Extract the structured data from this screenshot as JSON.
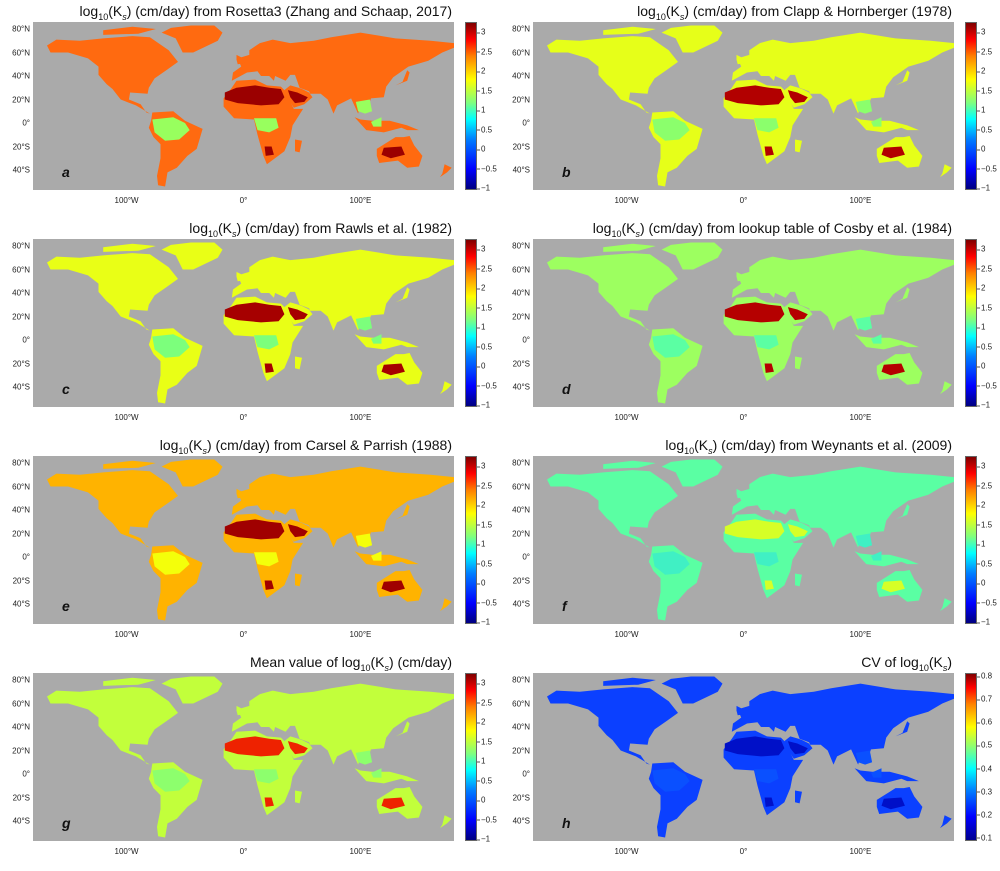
{
  "figure": {
    "lat_labels": [
      "80°N",
      "60°N",
      "40°N",
      "20°N",
      "0°",
      "20°S",
      "40°S"
    ],
    "lon_labels": [
      "100°W",
      "0°",
      "100°E"
    ],
    "colorbar_ticks_ks": [
      "3",
      "2.5",
      "2",
      "1.5",
      "1",
      "0.5",
      "0",
      "−0.5",
      "−1"
    ],
    "colorbar_ticks_cv": [
      "0.8",
      "0.7",
      "0.6",
      "0.5",
      "0.4",
      "0.3",
      "0.2",
      "0.1"
    ]
  },
  "panels": [
    {
      "letter": "a",
      "title_pre": "log",
      "title_sub": "10",
      "title_paren": "(K",
      "title_s": "s",
      "title_post": ") (cm/day) from Rosetta3 (Zhang and Schaap, 2017)",
      "base_color": "#ff6a10",
      "tropic_color": "#98ff5e",
      "desert_color": "#9b0000"
    },
    {
      "letter": "b",
      "title_pre": "log",
      "title_sub": "10",
      "title_paren": "(K",
      "title_s": "s",
      "title_post": ") (cm/day) from Clapp & Hornberger (1978)",
      "base_color": "#e6ff19",
      "tropic_color": "#8bff6c",
      "desert_color": "#b20000"
    },
    {
      "letter": "c",
      "title_pre": "log",
      "title_sub": "10",
      "title_paren": "(K",
      "title_s": "s",
      "title_post": ") (cm/day) from Rawls et al. (1982)",
      "base_color": "#e9ff16",
      "tropic_color": "#7cff7c",
      "desert_color": "#a60000"
    },
    {
      "letter": "d",
      "title_pre": "log",
      "title_sub": "10",
      "title_paren": "(K",
      "title_s": "s",
      "title_post": ") (cm/day) from lookup table of Cosby et al. (1984)",
      "base_color": "#9dff60",
      "tropic_color": "#5bffa3",
      "desert_color": "#b50000"
    },
    {
      "letter": "e",
      "title_pre": "log",
      "title_sub": "10",
      "title_paren": "(K",
      "title_s": "s",
      "title_post": ") (cm/day) from Carsel & Parrish (1988)",
      "base_color": "#ffb300",
      "tropic_color": "#f4ff0a",
      "desert_color": "#a00000"
    },
    {
      "letter": "f",
      "title_pre": "log",
      "title_sub": "10",
      "title_paren": "(K",
      "title_s": "s",
      "title_post": ") (cm/day) from Weynants et al. (2009)",
      "base_color": "#5affa3",
      "tropic_color": "#40f0c4",
      "desert_color": "#d6ff27"
    },
    {
      "letter": "g",
      "title_pre": "Mean value of log",
      "title_sub": "10",
      "title_paren": "(K",
      "title_s": "s",
      "title_post": ") (cm/day)",
      "base_color": "#c2ff3b",
      "tropic_color": "#8dff6d",
      "desert_color": "#ee2200"
    },
    {
      "letter": "h",
      "title_pre": "CV of log",
      "title_sub": "10",
      "title_paren": "(K",
      "title_s": "s",
      "title_post": ")",
      "base_color": "#0b40ff",
      "tropic_color": "#0a50ff",
      "desert_color": "#0010c8"
    }
  ]
}
